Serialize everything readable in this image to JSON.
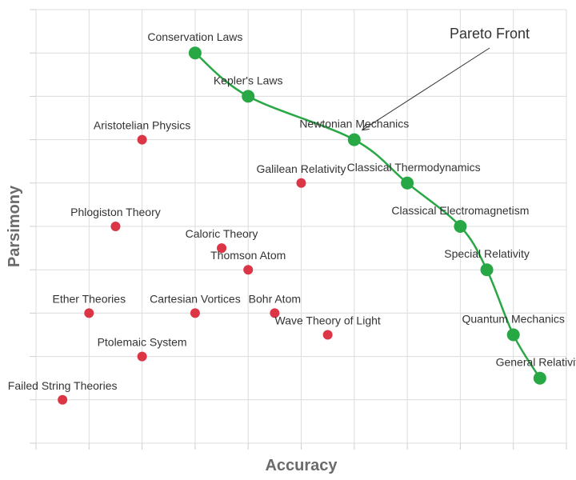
{
  "chart_data": {
    "type": "scatter",
    "title": "",
    "xlabel": "Accuracy",
    "ylabel": "Parsimony",
    "xlim": [
      0,
      10
    ],
    "ylim": [
      0,
      10
    ],
    "grid": true,
    "series": [
      {
        "role": "pareto",
        "color": "#28a745",
        "points": [
          {
            "label": "Conservation Laws",
            "x": 3.0,
            "y": 9.0
          },
          {
            "label": "Kepler's Laws",
            "x": 4.0,
            "y": 8.0
          },
          {
            "label": "Newtonian Mechanics",
            "x": 6.0,
            "y": 7.0
          },
          {
            "label": "Classical Thermodynamics",
            "x": 7.0,
            "y": 6.0
          },
          {
            "label": "Classical Electromagnetism",
            "x": 8.0,
            "y": 5.0
          },
          {
            "label": "Special Relativity",
            "x": 8.5,
            "y": 4.0
          },
          {
            "label": "Quantum Mechanics",
            "x": 9.0,
            "y": 2.5
          },
          {
            "label": "General Relativity",
            "x": 9.5,
            "y": 1.5
          }
        ]
      },
      {
        "role": "dominated",
        "color": "#dc3545",
        "points": [
          {
            "label": "Aristotelian Physics",
            "x": 2.0,
            "y": 7.0
          },
          {
            "label": "Galilean Relativity",
            "x": 5.0,
            "y": 6.0
          },
          {
            "label": "Phlogiston Theory",
            "x": 1.5,
            "y": 5.0
          },
          {
            "label": "Caloric Theory",
            "x": 3.5,
            "y": 4.5
          },
          {
            "label": "Thomson Atom",
            "x": 4.0,
            "y": 4.0
          },
          {
            "label": "Ether Theories",
            "x": 1.0,
            "y": 3.0
          },
          {
            "label": "Cartesian Vortices",
            "x": 3.0,
            "y": 3.0
          },
          {
            "label": "Bohr Atom",
            "x": 4.5,
            "y": 3.0
          },
          {
            "label": "Wave Theory of Light",
            "x": 5.5,
            "y": 2.5
          },
          {
            "label": "Ptolemaic System",
            "x": 2.0,
            "y": 2.0
          },
          {
            "label": "Failed String Theories",
            "x": 0.5,
            "y": 1.0
          }
        ]
      }
    ],
    "annotations": [
      {
        "text": "Pareto Front",
        "target": "Newtonian Mechanics"
      }
    ]
  }
}
